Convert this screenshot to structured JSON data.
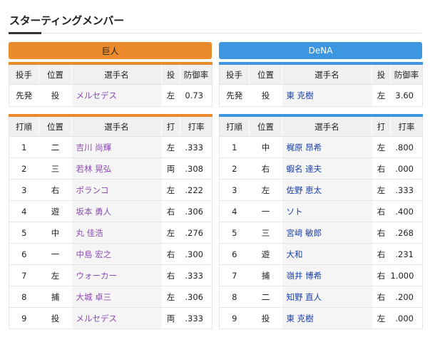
{
  "title": "スターティングメンバー",
  "teams": {
    "left": {
      "name": "巨人",
      "color": "#ea8a2b"
    },
    "right": {
      "name": "DeNA",
      "color": "#3d96e0"
    }
  },
  "pitcher_headers": [
    "投手",
    "位置",
    "選手名",
    "投",
    "防御率"
  ],
  "batting_headers": [
    "打順",
    "位置",
    "選手名",
    "打",
    "打率"
  ],
  "pitchers": {
    "left": {
      "role": "先発",
      "pos": "投",
      "name": "メルセデス",
      "hand": "左",
      "era": "0.73"
    },
    "right": {
      "role": "先発",
      "pos": "投",
      "name": "東 克樹",
      "hand": "左",
      "era": "3.60"
    }
  },
  "lineup": {
    "left": [
      {
        "order": "1",
        "pos": "二",
        "name": "吉川 尚輝",
        "hand": "左",
        "avg": ".333"
      },
      {
        "order": "2",
        "pos": "三",
        "name": "若林 晃弘",
        "hand": "両",
        "avg": ".308"
      },
      {
        "order": "3",
        "pos": "右",
        "name": "ポランコ",
        "hand": "左",
        "avg": ".222"
      },
      {
        "order": "4",
        "pos": "遊",
        "name": "坂本 勇人",
        "hand": "右",
        "avg": ".306"
      },
      {
        "order": "5",
        "pos": "中",
        "name": "丸 佳浩",
        "hand": "左",
        "avg": ".276"
      },
      {
        "order": "6",
        "pos": "一",
        "name": "中島 宏之",
        "hand": "右",
        "avg": ".300"
      },
      {
        "order": "7",
        "pos": "左",
        "name": "ウォーカー",
        "hand": "右",
        "avg": ".333"
      },
      {
        "order": "8",
        "pos": "捕",
        "name": "大城 卓三",
        "hand": "左",
        "avg": ".306"
      },
      {
        "order": "9",
        "pos": "投",
        "name": "メルセデス",
        "hand": "両",
        "avg": ".333"
      }
    ],
    "right": [
      {
        "order": "1",
        "pos": "中",
        "name": "梶原 昂希",
        "hand": "左",
        "avg": ".800"
      },
      {
        "order": "2",
        "pos": "右",
        "name": "蝦名 達夫",
        "hand": "右",
        "avg": ".000"
      },
      {
        "order": "3",
        "pos": "左",
        "name": "佐野 恵太",
        "hand": "左",
        "avg": ".333"
      },
      {
        "order": "4",
        "pos": "一",
        "name": "ソト",
        "hand": "右",
        "avg": ".400"
      },
      {
        "order": "5",
        "pos": "三",
        "name": "宮﨑 敏郎",
        "hand": "右",
        "avg": ".268"
      },
      {
        "order": "6",
        "pos": "遊",
        "name": "大和",
        "hand": "右",
        "avg": ".231"
      },
      {
        "order": "7",
        "pos": "捕",
        "name": "嶺井 博希",
        "hand": "右",
        "avg": "1.000"
      },
      {
        "order": "8",
        "pos": "二",
        "name": "知野 直人",
        "hand": "右",
        "avg": ".200"
      },
      {
        "order": "9",
        "pos": "投",
        "name": "東 克樹",
        "hand": "左",
        "avg": ".000"
      }
    ]
  }
}
